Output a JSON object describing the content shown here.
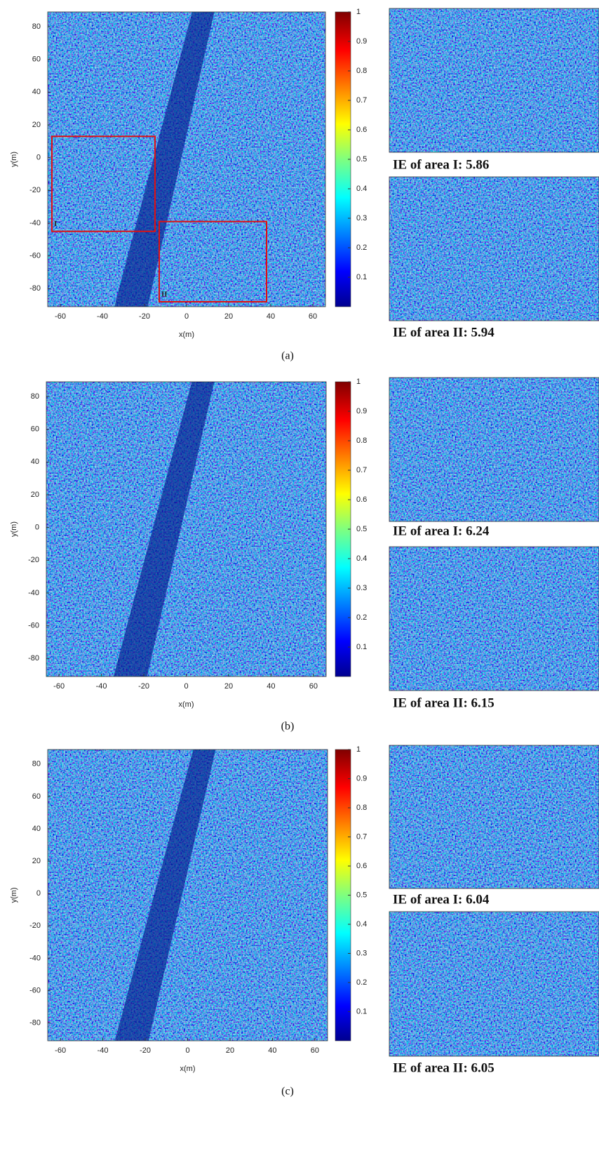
{
  "panels": [
    {
      "label": "(a)",
      "xlabel": "x(m)",
      "ylabel": "y(m)",
      "xlim": [
        -66,
        66
      ],
      "ylim": [
        -91,
        89
      ],
      "xticks": [
        -60,
        -40,
        -20,
        0,
        20,
        40,
        60
      ],
      "yticks": [
        -80,
        -60,
        -40,
        -20,
        0,
        20,
        40,
        60,
        80
      ],
      "clim": [
        0,
        1
      ],
      "cticks": [
        0.1,
        0.2,
        0.3,
        0.4,
        0.5,
        0.6,
        0.7,
        0.8,
        0.9,
        1
      ],
      "regions": [
        {
          "label": "I",
          "xlim": [
            -64,
            -15
          ],
          "ylim": [
            -45,
            13
          ]
        },
        {
          "label": "II",
          "xlim": [
            -13,
            38
          ],
          "ylim": [
            -88,
            -39
          ]
        }
      ],
      "captions": [
        "IE of area I: 5.86",
        "IE of area II: 5.94"
      ]
    },
    {
      "label": "(b)",
      "xlabel": "x(m)",
      "ylabel": "y(m)",
      "xlim": [
        -66,
        66
      ],
      "ylim": [
        -91,
        89
      ],
      "xticks": [
        -60,
        -40,
        -20,
        0,
        20,
        40,
        60
      ],
      "yticks": [
        -80,
        -60,
        -40,
        -20,
        0,
        20,
        40,
        60,
        80
      ],
      "clim": [
        0,
        1
      ],
      "cticks": [
        0.1,
        0.2,
        0.3,
        0.4,
        0.5,
        0.6,
        0.7,
        0.8,
        0.9,
        1
      ],
      "captions": [
        "IE of area I: 6.24",
        "IE of area II: 6.15"
      ]
    },
    {
      "label": "(c)",
      "xlabel": "x(m)",
      "ylabel": "y(m)",
      "xlim": [
        -66,
        66
      ],
      "ylim": [
        -91,
        89
      ],
      "xticks": [
        -60,
        -40,
        -20,
        0,
        20,
        40,
        60
      ],
      "yticks": [
        -80,
        -60,
        -40,
        -20,
        0,
        20,
        40,
        60,
        80
      ],
      "clim": [
        0,
        1
      ],
      "cticks": [
        0.1,
        0.2,
        0.3,
        0.4,
        0.5,
        0.6,
        0.7,
        0.8,
        0.9,
        1
      ],
      "captions": [
        "IE of area I: 6.04",
        "IE of area II: 6.05"
      ]
    }
  ]
}
